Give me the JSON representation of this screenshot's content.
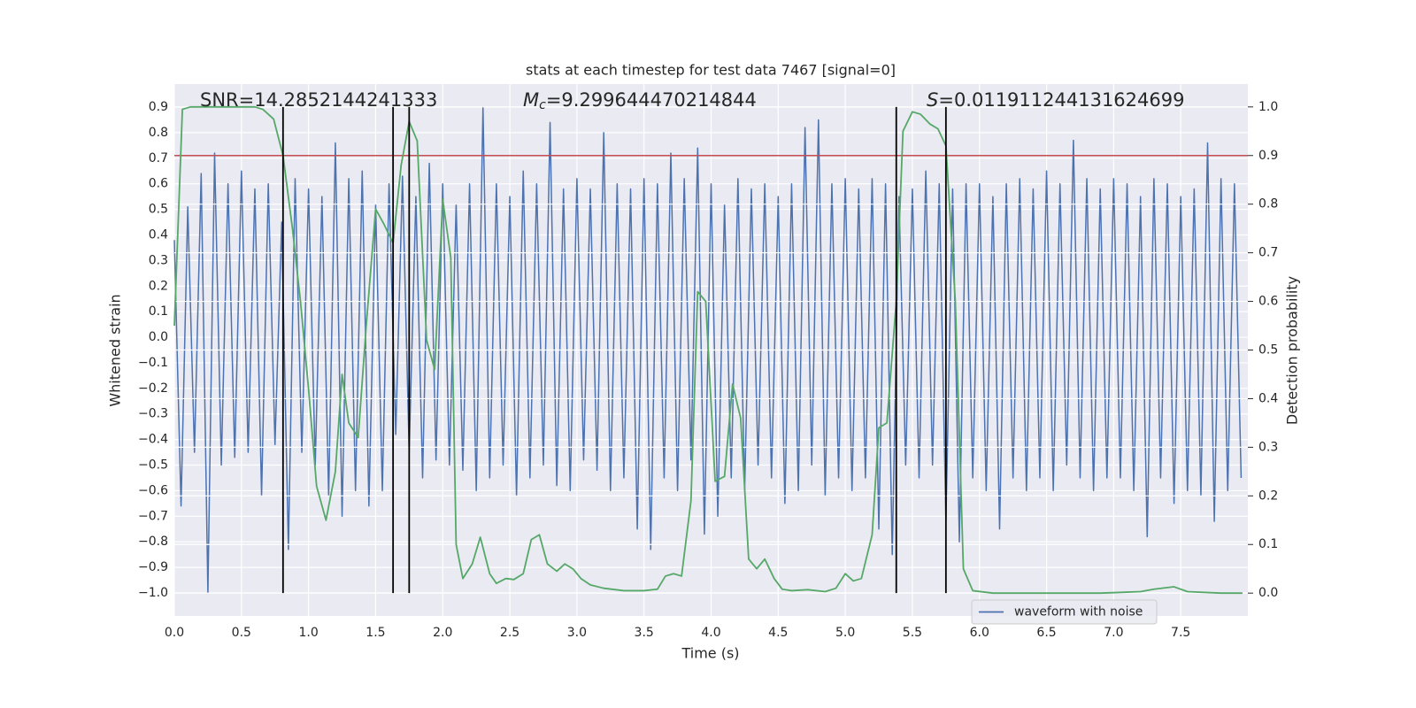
{
  "chart_data": {
    "type": "line",
    "title": "stats at each timestep for test data 7467 [signal=0]",
    "x_label": "Time (s)",
    "y_label": "Whitened strain",
    "y2_label": "Detection probability",
    "grid": true,
    "legend": "lower right",
    "xlim": [
      0,
      8.0
    ],
    "xticks": [
      {
        "value": 0,
        "label": "0.0"
      },
      {
        "value": 0.5,
        "label": "0.5"
      },
      {
        "value": 1.0,
        "label": "1.0"
      },
      {
        "value": 1.5,
        "label": "1.5"
      },
      {
        "value": 2.0,
        "label": "2.0"
      },
      {
        "value": 2.5,
        "label": "2.5"
      },
      {
        "value": 3.0,
        "label": "3.0"
      },
      {
        "value": 3.5,
        "label": "3.5"
      },
      {
        "value": 4.0,
        "label": "4.0"
      },
      {
        "value": 4.5,
        "label": "4.5"
      },
      {
        "value": 5.0,
        "label": "5.0"
      },
      {
        "value": 5.5,
        "label": "5.5"
      },
      {
        "value": 6.0,
        "label": "6.0"
      },
      {
        "value": 6.5,
        "label": "6.5"
      },
      {
        "value": 7.0,
        "label": "7.0"
      },
      {
        "value": 7.5,
        "label": "7.5"
      }
    ],
    "ylim": [
      -1.09,
      0.99
    ],
    "yticks": [
      {
        "value": 0.9,
        "label": "0.9"
      },
      {
        "value": 0.8,
        "label": "0.8"
      },
      {
        "value": 0.7,
        "label": "0.7"
      },
      {
        "value": 0.6,
        "label": "0.6"
      },
      {
        "value": 0.5,
        "label": "0.5"
      },
      {
        "value": 0.4,
        "label": "0.4"
      },
      {
        "value": 0.3,
        "label": "0.3"
      },
      {
        "value": 0.2,
        "label": "0.2"
      },
      {
        "value": 0.1,
        "label": "0.1"
      },
      {
        "value": 0,
        "label": "0.0"
      },
      {
        "value": -0.1,
        "label": "−0.1"
      },
      {
        "value": -0.2,
        "label": "−0.2"
      },
      {
        "value": -0.3,
        "label": "−0.3"
      },
      {
        "value": -0.4,
        "label": "−0.4"
      },
      {
        "value": -0.5,
        "label": "−0.5"
      },
      {
        "value": -0.6,
        "label": "−0.6"
      },
      {
        "value": -0.7,
        "label": "−0.7"
      },
      {
        "value": -0.8,
        "label": "−0.8"
      },
      {
        "value": -0.9,
        "label": "−0.9"
      },
      {
        "value": -1.0,
        "label": "−1.0"
      }
    ],
    "y2lim": [
      -0.047,
      1.047
    ],
    "y2ticks": [
      {
        "value": 0,
        "label": "0.0"
      },
      {
        "value": 0.1,
        "label": "0.1"
      },
      {
        "value": 0.2,
        "label": "0.2"
      },
      {
        "value": 0.3,
        "label": "0.3"
      },
      {
        "value": 0.4,
        "label": "0.4"
      },
      {
        "value": 0.5,
        "label": "0.5"
      },
      {
        "value": 0.6,
        "label": "0.6"
      },
      {
        "value": 0.7,
        "label": "0.7"
      },
      {
        "value": 0.8,
        "label": "0.8"
      },
      {
        "value": 0.9,
        "label": "0.9"
      },
      {
        "value": 1.0,
        "label": "1.0"
      }
    ],
    "annotations": {
      "snr": "SNR=14.2852144241333",
      "chirp_mass": {
        "symbol": "M",
        "subscript": "c",
        "text": "=9.299644470214844"
      },
      "s": {
        "symbol": "S",
        "text": "=0.011911244131624699"
      }
    },
    "threshold": {
      "value": 0.9,
      "axis": "y2",
      "color": "#c44e52"
    },
    "event_lines": {
      "x": [
        0.81,
        1.63,
        1.75,
        5.38,
        5.75
      ],
      "y2span": [
        0,
        1.0
      ],
      "color": "#000000"
    },
    "series": [
      {
        "name": "waveform with noise",
        "color": "#4c72b0",
        "axis": "y",
        "x": [
          0,
          0.05,
          0.1,
          0.15,
          0.2,
          0.25,
          0.3,
          0.35,
          0.4,
          0.45,
          0.5,
          0.55,
          0.6,
          0.65,
          0.7,
          0.75,
          0.8,
          0.85,
          0.9,
          0.95,
          1.0,
          1.05,
          1.1,
          1.15,
          1.2,
          1.25,
          1.3,
          1.35,
          1.4,
          1.45,
          1.5,
          1.55,
          1.6,
          1.65,
          1.7,
          1.75,
          1.8,
          1.85,
          1.9,
          1.95,
          2.0,
          2.05,
          2.1,
          2.15,
          2.2,
          2.25,
          2.3,
          2.35,
          2.4,
          2.45,
          2.5,
          2.55,
          2.6,
          2.65,
          2.7,
          2.75,
          2.8,
          2.85,
          2.9,
          2.95,
          3.0,
          3.05,
          3.1,
          3.15,
          3.2,
          3.25,
          3.3,
          3.35,
          3.4,
          3.45,
          3.5,
          3.55,
          3.6,
          3.65,
          3.7,
          3.75,
          3.8,
          3.85,
          3.9,
          3.95,
          4.0,
          4.05,
          4.1,
          4.15,
          4.2,
          4.25,
          4.3,
          4.35,
          4.4,
          4.45,
          4.5,
          4.55,
          4.6,
          4.65,
          4.7,
          4.75,
          4.8,
          4.85,
          4.9,
          4.95,
          5.0,
          5.05,
          5.1,
          5.15,
          5.2,
          5.25,
          5.3,
          5.35,
          5.4,
          5.45,
          5.5,
          5.55,
          5.6,
          5.65,
          5.7,
          5.75,
          5.8,
          5.85,
          5.9,
          5.95,
          6.0,
          6.05,
          6.1,
          6.15,
          6.2,
          6.25,
          6.3,
          6.35,
          6.4,
          6.45,
          6.5,
          6.55,
          6.6,
          6.65,
          6.7,
          6.75,
          6.8,
          6.85,
          6.9,
          6.95,
          7.0,
          7.05,
          7.1,
          7.15,
          7.2,
          7.25,
          7.3,
          7.35,
          7.4,
          7.45,
          7.5,
          7.55,
          7.6,
          7.65,
          7.7,
          7.75,
          7.8,
          7.85,
          7.9,
          7.95
        ],
        "values": [
          0.38,
          -0.66,
          0.51,
          -0.45,
          0.64,
          -1.0,
          0.72,
          -0.5,
          0.6,
          -0.47,
          0.65,
          -0.45,
          0.58,
          -0.62,
          0.6,
          -0.42,
          0.45,
          -0.83,
          0.62,
          -0.45,
          0.58,
          -0.5,
          0.55,
          -0.62,
          0.76,
          -0.7,
          0.62,
          -0.6,
          0.65,
          -0.66,
          0.52,
          -0.6,
          0.6,
          -0.38,
          0.63,
          -0.45,
          0.55,
          -0.55,
          0.68,
          -0.48,
          0.6,
          -0.5,
          0.52,
          -0.52,
          0.6,
          -0.6,
          0.9,
          -0.55,
          0.6,
          -0.5,
          0.55,
          -0.62,
          0.65,
          -0.55,
          0.6,
          -0.5,
          0.84,
          -0.58,
          0.58,
          -0.6,
          0.62,
          -0.48,
          0.58,
          -0.52,
          0.8,
          -0.6,
          0.6,
          -0.55,
          0.58,
          -0.75,
          0.62,
          -0.83,
          0.6,
          -0.55,
          0.72,
          -0.6,
          0.62,
          -0.48,
          0.74,
          -0.77,
          0.6,
          -0.7,
          0.52,
          -0.55,
          0.62,
          -0.6,
          0.58,
          -0.5,
          0.6,
          -0.55,
          0.55,
          -0.65,
          0.6,
          -0.6,
          0.82,
          -0.5,
          0.85,
          -0.62,
          0.6,
          -0.55,
          0.62,
          -0.6,
          0.58,
          -0.55,
          0.62,
          -0.75,
          0.6,
          -0.85,
          0.55,
          -0.5,
          0.58,
          -0.55,
          0.65,
          -0.5,
          0.6,
          -0.72,
          0.58,
          -0.8,
          0.6,
          -0.55,
          0.6,
          -0.6,
          0.55,
          -0.75,
          0.6,
          -0.55,
          0.62,
          -0.6,
          0.58,
          -0.55,
          0.65,
          -0.6,
          0.6,
          -0.5,
          0.77,
          -0.55,
          0.62,
          -0.6,
          0.58,
          -0.55,
          0.62,
          -0.55,
          0.6,
          -0.6,
          0.55,
          -0.78,
          0.62,
          -0.55,
          0.6,
          -0.65,
          0.55,
          -0.6,
          0.58,
          -0.62,
          0.76,
          -0.72,
          0.62,
          -0.6,
          0.6,
          -0.55
        ]
      },
      {
        "color": "#55a868",
        "axis": "y2",
        "x": [
          0,
          0.06,
          0.12,
          0.2,
          0.3,
          0.4,
          0.5,
          0.6,
          0.66,
          0.74,
          0.81,
          0.88,
          0.94,
          1.0,
          1.06,
          1.13,
          1.2,
          1.25,
          1.3,
          1.37,
          1.43,
          1.5,
          1.56,
          1.63,
          1.69,
          1.75,
          1.81,
          1.88,
          1.94,
          2.0,
          2.06,
          2.1,
          2.15,
          2.22,
          2.28,
          2.35,
          2.4,
          2.47,
          2.53,
          2.6,
          2.66,
          2.72,
          2.78,
          2.85,
          2.91,
          2.97,
          3.03,
          3.1,
          3.2,
          3.35,
          3.5,
          3.6,
          3.66,
          3.72,
          3.78,
          3.85,
          3.9,
          3.96,
          4.03,
          4.1,
          4.16,
          4.22,
          4.28,
          4.34,
          4.4,
          4.47,
          4.53,
          4.6,
          4.72,
          4.85,
          4.93,
          5.0,
          5.06,
          5.12,
          5.2,
          5.25,
          5.31,
          5.38,
          5.43,
          5.5,
          5.56,
          5.63,
          5.69,
          5.75,
          5.82,
          5.88,
          5.95,
          6.1,
          6.3,
          6.6,
          6.9,
          7.2,
          7.3,
          7.45,
          7.55,
          7.8,
          7.96
        ],
        "values": [
          0.55,
          0.995,
          1.0,
          1.0,
          1.0,
          1.0,
          1.0,
          1.0,
          0.995,
          0.975,
          0.9,
          0.75,
          0.6,
          0.42,
          0.22,
          0.15,
          0.25,
          0.45,
          0.35,
          0.32,
          0.55,
          0.79,
          0.76,
          0.72,
          0.88,
          0.97,
          0.93,
          0.52,
          0.46,
          0.81,
          0.69,
          0.1,
          0.03,
          0.06,
          0.115,
          0.04,
          0.02,
          0.03,
          0.028,
          0.04,
          0.11,
          0.12,
          0.06,
          0.045,
          0.06,
          0.05,
          0.03,
          0.017,
          0.01,
          0.005,
          0.005,
          0.008,
          0.035,
          0.04,
          0.035,
          0.19,
          0.62,
          0.6,
          0.23,
          0.24,
          0.43,
          0.36,
          0.07,
          0.05,
          0.07,
          0.03,
          0.008,
          0.005,
          0.007,
          0.003,
          0.01,
          0.04,
          0.025,
          0.03,
          0.12,
          0.34,
          0.35,
          0.6,
          0.95,
          0.99,
          0.985,
          0.965,
          0.955,
          0.92,
          0.6,
          0.05,
          0.005,
          0,
          0,
          0,
          0,
          0.003,
          0.008,
          0.013,
          0.003,
          0,
          0
        ]
      }
    ]
  }
}
